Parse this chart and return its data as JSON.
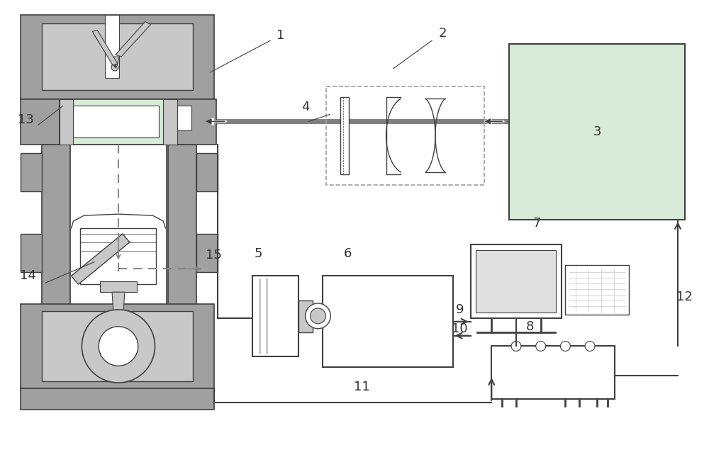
{
  "bg_color": "#ffffff",
  "gray_dark": "#707070",
  "gray_med": "#a0a0a0",
  "gray_light": "#c8c8c8",
  "gray_lighter": "#e0e0e0",
  "green_light": "#d8ead8",
  "white": "#ffffff",
  "dk": "#404040",
  "beam_color": "#909090",
  "label_fs": 13
}
